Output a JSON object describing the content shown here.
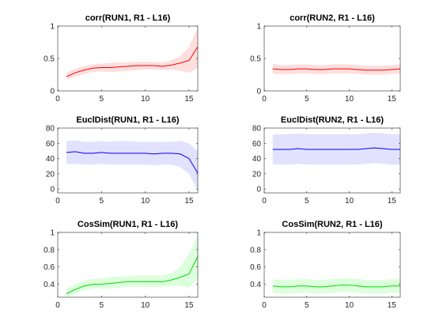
{
  "figure": {
    "background": "#ffffff"
  },
  "chart_data": [
    {
      "type": "line",
      "title": "corr(RUN1, R1 - L16)",
      "xlim": [
        0,
        16
      ],
      "ylim": [
        0,
        1
      ],
      "xticks": [
        0,
        5,
        10,
        15
      ],
      "yticks": [
        0,
        0.5,
        1
      ],
      "xtick_labels": [
        "0",
        "5",
        "10",
        "15"
      ],
      "ytick_labels": [
        "0",
        "0.5",
        "1"
      ],
      "color": "#ff0000",
      "band_color": "#ffdede",
      "x": [
        1,
        2,
        3,
        4,
        5,
        6,
        7,
        8,
        9,
        10,
        11,
        12,
        13,
        14,
        15,
        16
      ],
      "mean": [
        0.22,
        0.28,
        0.32,
        0.35,
        0.36,
        0.36,
        0.37,
        0.38,
        0.39,
        0.39,
        0.39,
        0.38,
        0.4,
        0.43,
        0.47,
        0.68
      ],
      "upper": [
        0.28,
        0.34,
        0.38,
        0.41,
        0.42,
        0.43,
        0.44,
        0.44,
        0.45,
        0.45,
        0.45,
        0.44,
        0.47,
        0.54,
        0.68,
        0.98
      ],
      "lower": [
        0.17,
        0.22,
        0.26,
        0.29,
        0.3,
        0.29,
        0.3,
        0.31,
        0.32,
        0.33,
        0.33,
        0.32,
        0.33,
        0.31,
        0.28,
        0.36
      ]
    },
    {
      "type": "line",
      "title": "corr(RUN2, R1 - L16)",
      "xlim": [
        0,
        16
      ],
      "ylim": [
        0,
        1
      ],
      "xticks": [
        0,
        5,
        10,
        15
      ],
      "yticks": [
        0,
        0.5,
        1
      ],
      "xtick_labels": [
        "0",
        "5",
        "10",
        "15"
      ],
      "ytick_labels": [
        "0",
        "0.5",
        "1"
      ],
      "color": "#ff0000",
      "band_color": "#ffdede",
      "x": [
        1,
        2,
        3,
        4,
        5,
        6,
        7,
        8,
        9,
        10,
        11,
        12,
        13,
        14,
        15,
        16
      ],
      "mean": [
        0.34,
        0.33,
        0.33,
        0.34,
        0.34,
        0.33,
        0.33,
        0.34,
        0.34,
        0.34,
        0.33,
        0.32,
        0.32,
        0.32,
        0.33,
        0.34
      ],
      "upper": [
        0.42,
        0.4,
        0.4,
        0.41,
        0.41,
        0.4,
        0.4,
        0.41,
        0.41,
        0.41,
        0.4,
        0.39,
        0.39,
        0.39,
        0.4,
        0.41
      ],
      "lower": [
        0.26,
        0.26,
        0.26,
        0.27,
        0.27,
        0.26,
        0.26,
        0.27,
        0.27,
        0.27,
        0.26,
        0.25,
        0.25,
        0.25,
        0.26,
        0.27
      ]
    },
    {
      "type": "line",
      "title": "EuclDist(RUN1, R1 - L16)",
      "xlim": [
        0,
        16
      ],
      "ylim": [
        -5,
        80
      ],
      "xticks": [
        0,
        5,
        10,
        15
      ],
      "yticks": [
        0,
        20,
        40,
        60,
        80
      ],
      "xtick_labels": [
        "0",
        "5",
        "10",
        "15"
      ],
      "ytick_labels": [
        "0",
        "20",
        "40",
        "60",
        "80"
      ],
      "color": "#0000ff",
      "band_color": "#e2e2ff",
      "x": [
        1,
        2,
        3,
        4,
        5,
        6,
        7,
        8,
        9,
        10,
        11,
        12,
        13,
        14,
        15,
        16
      ],
      "mean": [
        48,
        49,
        47,
        47,
        48,
        47,
        47,
        47,
        47,
        47,
        46,
        47,
        47,
        46,
        40,
        21
      ],
      "upper": [
        63,
        64,
        62,
        62,
        63,
        62,
        63,
        63,
        62,
        62,
        62,
        62,
        62,
        63,
        60,
        50
      ],
      "lower": [
        33,
        33,
        32,
        32,
        33,
        32,
        32,
        32,
        32,
        32,
        31,
        32,
        32,
        29,
        20,
        -2
      ]
    },
    {
      "type": "line",
      "title": "EuclDist(RUN2, R1 - L16)",
      "xlim": [
        0,
        16
      ],
      "ylim": [
        -5,
        80
      ],
      "xticks": [
        0,
        5,
        10,
        15
      ],
      "yticks": [
        0,
        20,
        40,
        60,
        80
      ],
      "xtick_labels": [
        "0",
        "5",
        "10",
        "15"
      ],
      "ytick_labels": [
        "0",
        "20",
        "40",
        "60",
        "80"
      ],
      "color": "#0000ff",
      "band_color": "#e2e2ff",
      "x": [
        1,
        2,
        3,
        4,
        5,
        6,
        7,
        8,
        9,
        10,
        11,
        12,
        13,
        14,
        15,
        16
      ],
      "mean": [
        52,
        52,
        52,
        53,
        52,
        52,
        52,
        52,
        52,
        52,
        52,
        53,
        54,
        53,
        52,
        52
      ],
      "upper": [
        72,
        72,
        72,
        73,
        72,
        72,
        72,
        72,
        72,
        72,
        72,
        73,
        74,
        73,
        72,
        72
      ],
      "lower": [
        32,
        32,
        32,
        33,
        32,
        32,
        32,
        32,
        32,
        32,
        32,
        33,
        34,
        33,
        32,
        32
      ]
    },
    {
      "type": "line",
      "title": "CosSim(RUN1, R1 - L16)",
      "xlim": [
        0,
        16
      ],
      "ylim": [
        0.25,
        1
      ],
      "xticks": [
        0,
        5,
        10,
        15
      ],
      "yticks": [
        0.4,
        0.6,
        0.8,
        1
      ],
      "xtick_labels": [
        "0",
        "5",
        "10",
        "15"
      ],
      "ytick_labels": [
        "0.4",
        "0.6",
        "0.8",
        "1"
      ],
      "color": "#00dd00",
      "band_color": "#ddffdd",
      "x": [
        1,
        2,
        3,
        4,
        5,
        6,
        7,
        8,
        9,
        10,
        11,
        12,
        13,
        14,
        15,
        16
      ],
      "mean": [
        0.29,
        0.34,
        0.38,
        0.4,
        0.4,
        0.41,
        0.42,
        0.43,
        0.43,
        0.43,
        0.43,
        0.43,
        0.45,
        0.48,
        0.52,
        0.72
      ],
      "upper": [
        0.34,
        0.4,
        0.44,
        0.46,
        0.47,
        0.48,
        0.49,
        0.49,
        0.5,
        0.5,
        0.5,
        0.5,
        0.53,
        0.6,
        0.75,
        0.98
      ],
      "lower": [
        0.25,
        0.29,
        0.33,
        0.35,
        0.35,
        0.35,
        0.36,
        0.37,
        0.37,
        0.37,
        0.37,
        0.37,
        0.38,
        0.38,
        0.36,
        0.47
      ]
    },
    {
      "type": "line",
      "title": "CosSim(RUN2, R1 - L16)",
      "xlim": [
        0,
        16
      ],
      "ylim": [
        0.25,
        1
      ],
      "xticks": [
        0,
        5,
        10,
        15
      ],
      "yticks": [
        0.4,
        0.6,
        0.8,
        1
      ],
      "xtick_labels": [
        "0",
        "5",
        "10",
        "15"
      ],
      "ytick_labels": [
        "0.4",
        "0.6",
        "0.8",
        "1"
      ],
      "color": "#00dd00",
      "band_color": "#ddffdd",
      "x": [
        1,
        2,
        3,
        4,
        5,
        6,
        7,
        8,
        9,
        10,
        11,
        12,
        13,
        14,
        15,
        16
      ],
      "mean": [
        0.38,
        0.37,
        0.37,
        0.38,
        0.38,
        0.37,
        0.37,
        0.38,
        0.39,
        0.39,
        0.38,
        0.37,
        0.37,
        0.37,
        0.38,
        0.38
      ],
      "upper": [
        0.46,
        0.45,
        0.45,
        0.46,
        0.46,
        0.45,
        0.45,
        0.46,
        0.47,
        0.47,
        0.46,
        0.45,
        0.45,
        0.45,
        0.46,
        0.46
      ],
      "lower": [
        0.3,
        0.29,
        0.29,
        0.3,
        0.3,
        0.29,
        0.29,
        0.3,
        0.31,
        0.31,
        0.3,
        0.29,
        0.29,
        0.29,
        0.3,
        0.3
      ]
    }
  ]
}
